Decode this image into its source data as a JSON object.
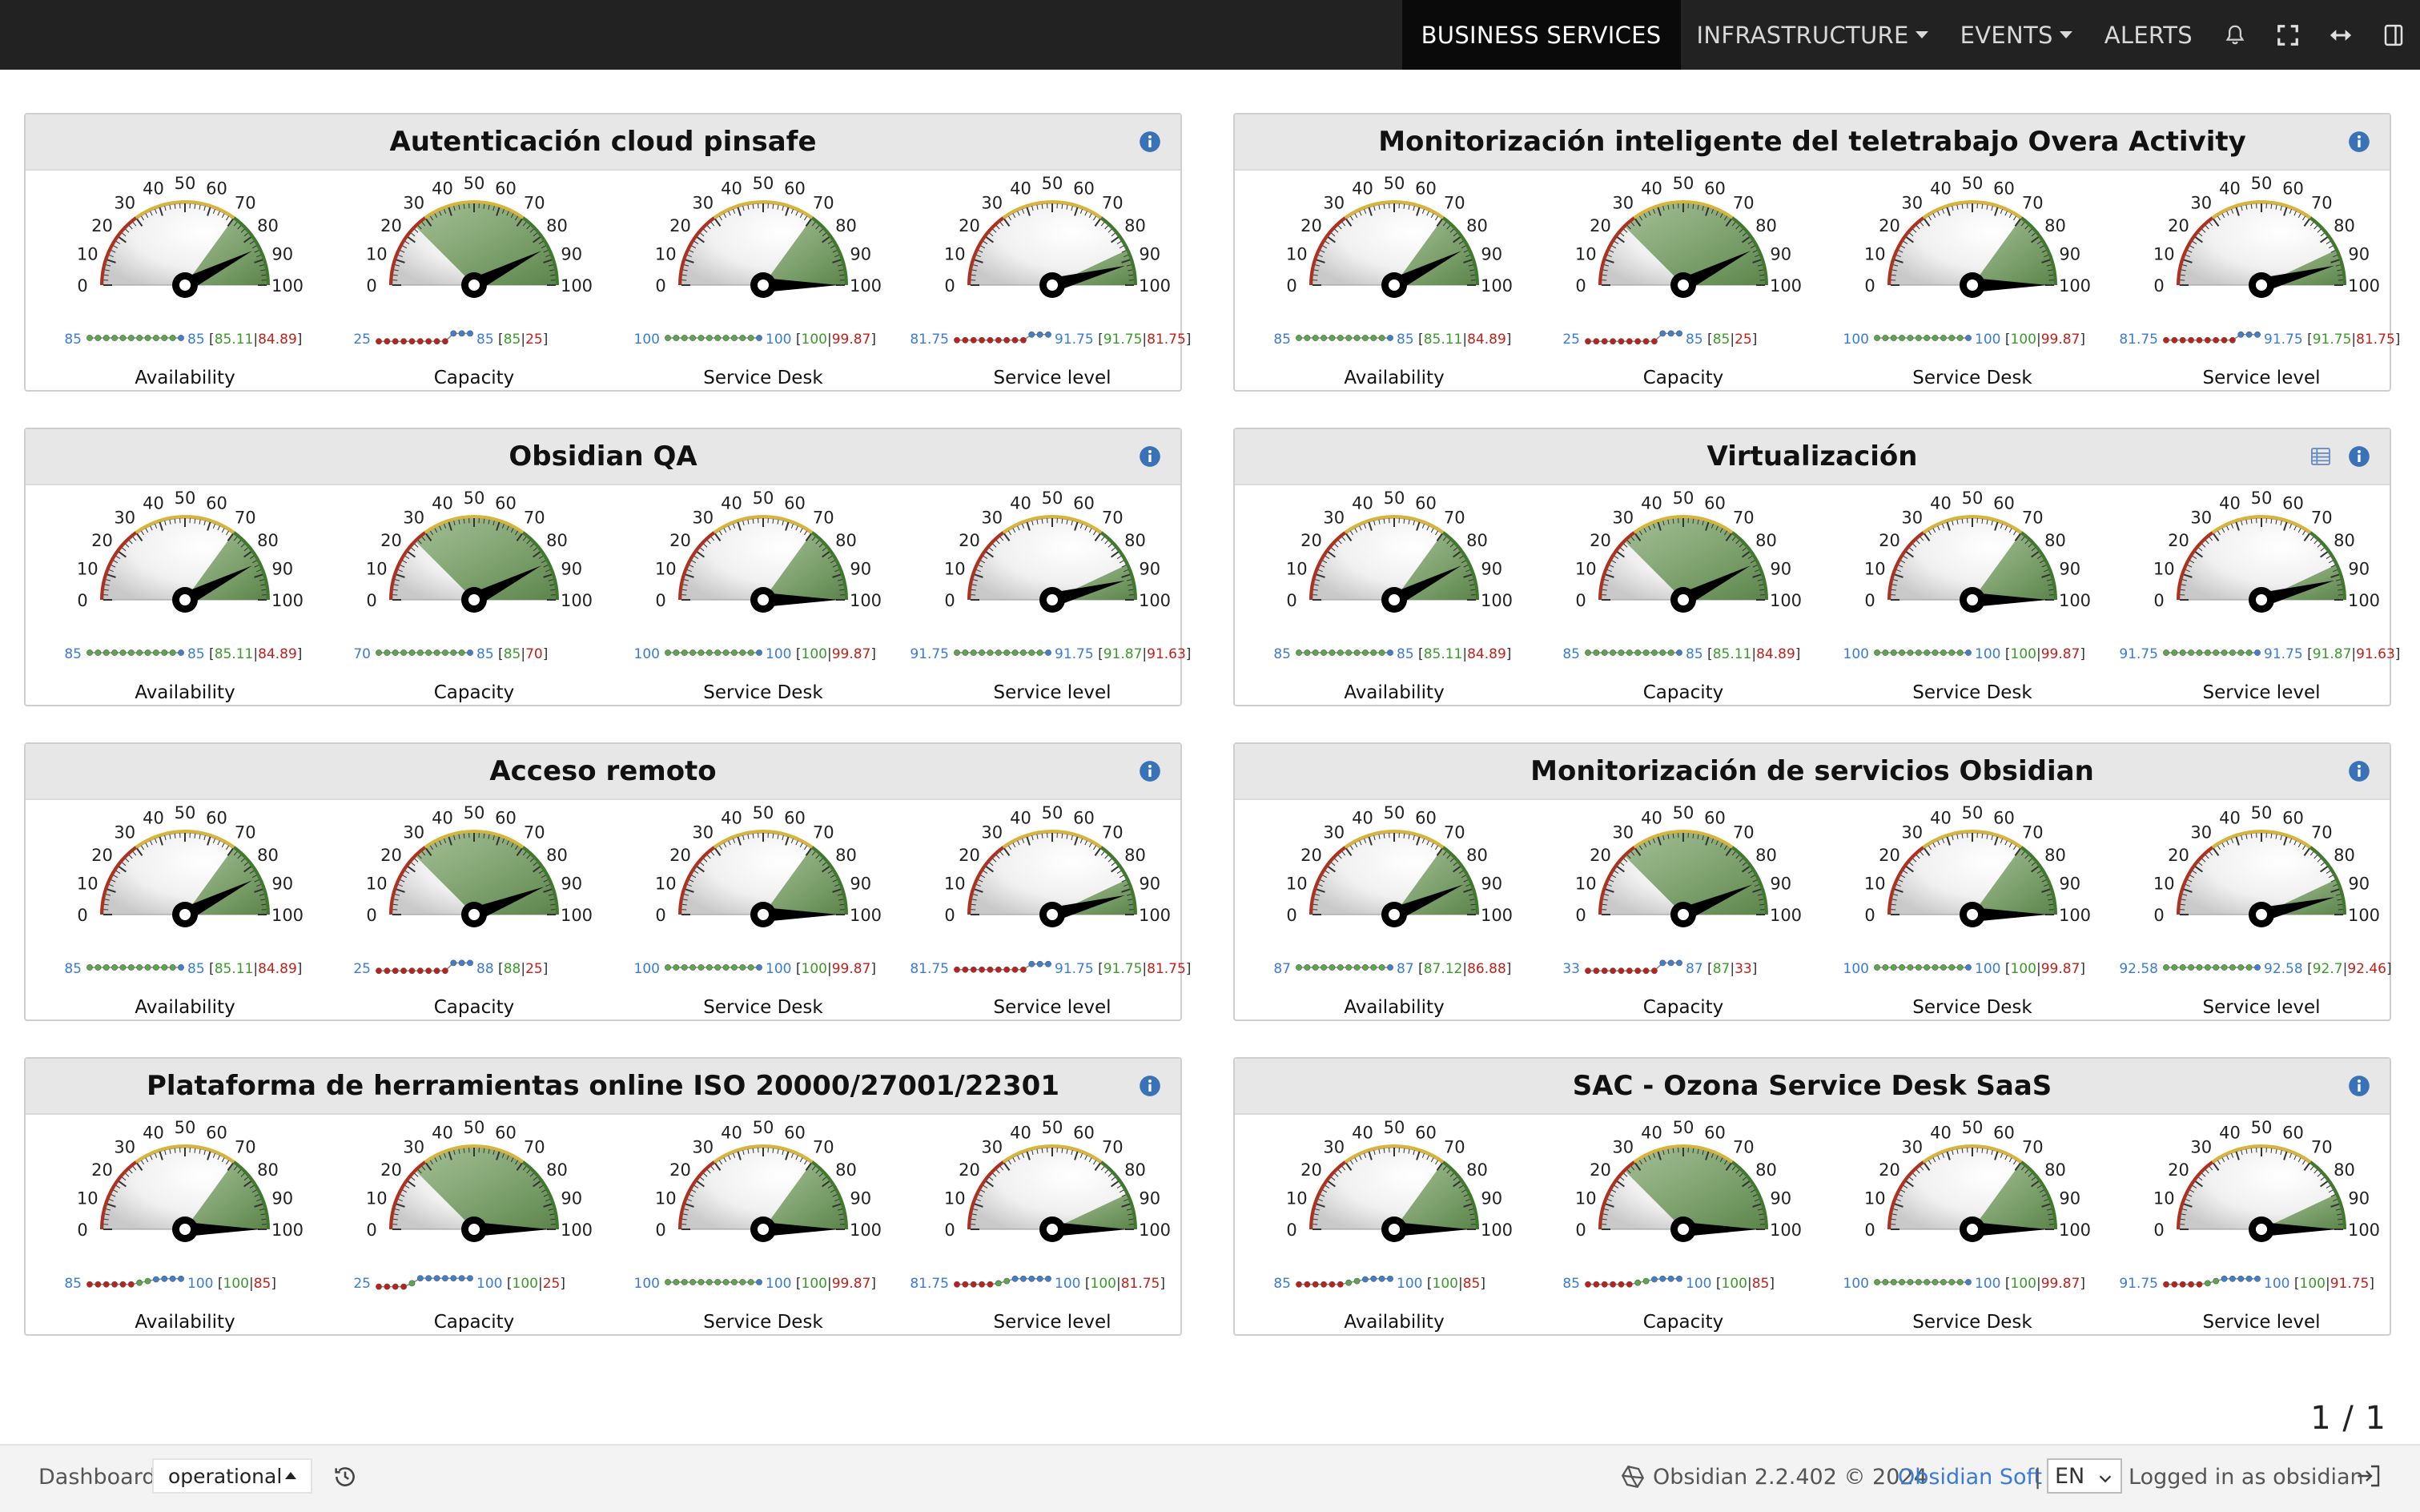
{
  "nav": {
    "items": [
      {
        "label": "BUSINESS SERVICES",
        "active": true,
        "dropdown": false
      },
      {
        "label": "INFRASTRUCTURE",
        "active": false,
        "dropdown": true
      },
      {
        "label": "EVENTS",
        "active": false,
        "dropdown": true
      },
      {
        "label": "ALERTS",
        "active": false,
        "dropdown": false
      }
    ],
    "icons": [
      "bell-icon",
      "fullscreen-icon",
      "resize-horizontal-icon",
      "sidebar-toggle-icon"
    ]
  },
  "colors": {
    "topbar": "#222222",
    "link": "#3a7bd5",
    "green": "#3a9a2a",
    "red": "#c0201a",
    "gauge_fill": "#4f7d3c",
    "info": "#3a72b8"
  },
  "gauge_scale": {
    "min": 0,
    "max": 100,
    "ticks": [
      "0",
      "10",
      "20",
      "30",
      "40",
      "50",
      "60",
      "70",
      "80",
      "90",
      "100"
    ]
  },
  "panels": [
    {
      "title": "Autenticación cloud pinsafe",
      "has_list_icon": false,
      "gauges": [
        {
          "label": "Availability",
          "value": 85,
          "min_val": "85",
          "cur_val": "85",
          "hi": "85.11",
          "lo": "84.89",
          "spark": [
            0.5,
            0.5,
            0.5,
            0.5,
            0.5,
            0.5,
            0.5,
            0.5,
            0.5,
            0.5,
            0.5,
            0.5
          ],
          "fill_from": 70
        },
        {
          "label": "Capacity",
          "value": 85,
          "min_val": "25",
          "cur_val": "85",
          "hi": "85",
          "lo": "25",
          "spark": [
            0.2,
            0.2,
            0.2,
            0.2,
            0.2,
            0.2,
            0.2,
            0.2,
            0.2,
            0.9,
            0.9,
            0.9
          ],
          "fill_from": 25
        },
        {
          "label": "Service Desk",
          "value": 100,
          "min_val": "100",
          "cur_val": "100",
          "hi": "100",
          "lo": "99.87",
          "spark": [
            0.5,
            0.5,
            0.5,
            0.5,
            0.5,
            0.5,
            0.5,
            0.5,
            0.5,
            0.5,
            0.5,
            0.5
          ],
          "fill_from": 70
        },
        {
          "label": "Service level",
          "value": 91.75,
          "min_val": "81.75",
          "cur_val": "91.75",
          "hi": "91.75",
          "lo": "81.75",
          "spark": [
            0.3,
            0.3,
            0.3,
            0.3,
            0.3,
            0.3,
            0.3,
            0.3,
            0.3,
            0.8,
            0.8,
            0.8
          ],
          "fill_from": 86
        }
      ]
    },
    {
      "title": "Monitorización inteligente del teletrabajo Overa Activity",
      "has_list_icon": false,
      "gauges": [
        {
          "label": "Availability",
          "value": 85,
          "min_val": "85",
          "cur_val": "85",
          "hi": "85.11",
          "lo": "84.89",
          "spark": [
            0.5,
            0.5,
            0.5,
            0.5,
            0.5,
            0.5,
            0.5,
            0.5,
            0.5,
            0.5,
            0.5,
            0.5
          ],
          "fill_from": 70
        },
        {
          "label": "Capacity",
          "value": 85,
          "min_val": "25",
          "cur_val": "85",
          "hi": "85",
          "lo": "25",
          "spark": [
            0.2,
            0.2,
            0.2,
            0.2,
            0.2,
            0.2,
            0.2,
            0.2,
            0.2,
            0.9,
            0.9,
            0.9
          ],
          "fill_from": 25
        },
        {
          "label": "Service Desk",
          "value": 100,
          "min_val": "100",
          "cur_val": "100",
          "hi": "100",
          "lo": "99.87",
          "spark": [
            0.5,
            0.5,
            0.5,
            0.5,
            0.5,
            0.5,
            0.5,
            0.5,
            0.5,
            0.5,
            0.5,
            0.5
          ],
          "fill_from": 70
        },
        {
          "label": "Service level",
          "value": 91.75,
          "min_val": "81.75",
          "cur_val": "91.75",
          "hi": "91.75",
          "lo": "81.75",
          "spark": [
            0.3,
            0.3,
            0.3,
            0.3,
            0.3,
            0.3,
            0.3,
            0.3,
            0.3,
            0.8,
            0.8,
            0.8
          ],
          "fill_from": 86
        }
      ]
    },
    {
      "title": "Obsidian QA",
      "has_list_icon": false,
      "gauges": [
        {
          "label": "Availability",
          "value": 85,
          "min_val": "85",
          "cur_val": "85",
          "hi": "85.11",
          "lo": "84.89",
          "spark": [
            0.5,
            0.5,
            0.5,
            0.5,
            0.5,
            0.5,
            0.5,
            0.5,
            0.5,
            0.5,
            0.5,
            0.5
          ],
          "fill_from": 70
        },
        {
          "label": "Capacity",
          "value": 85,
          "min_val": "70",
          "cur_val": "85",
          "hi": "85",
          "lo": "70",
          "spark": [
            0.5,
            0.5,
            0.5,
            0.5,
            0.5,
            0.5,
            0.5,
            0.5,
            0.5,
            0.5,
            0.5,
            0.5
          ],
          "fill_from": 25
        },
        {
          "label": "Service Desk",
          "value": 100,
          "min_val": "100",
          "cur_val": "100",
          "hi": "100",
          "lo": "99.87",
          "spark": [
            0.5,
            0.5,
            0.5,
            0.5,
            0.5,
            0.5,
            0.5,
            0.5,
            0.5,
            0.5,
            0.5,
            0.5
          ],
          "fill_from": 70
        },
        {
          "label": "Service level",
          "value": 91.75,
          "min_val": "91.75",
          "cur_val": "91.75",
          "hi": "91.87",
          "lo": "91.63",
          "spark": [
            0.5,
            0.5,
            0.5,
            0.5,
            0.5,
            0.5,
            0.5,
            0.5,
            0.5,
            0.5,
            0.5,
            0.5
          ],
          "fill_from": 86
        }
      ]
    },
    {
      "title": "Virtualización",
      "has_list_icon": true,
      "gauges": [
        {
          "label": "Availability",
          "value": 85,
          "min_val": "85",
          "cur_val": "85",
          "hi": "85.11",
          "lo": "84.89",
          "spark": [
            0.5,
            0.5,
            0.5,
            0.5,
            0.5,
            0.5,
            0.5,
            0.5,
            0.5,
            0.5,
            0.5,
            0.5
          ],
          "fill_from": 70
        },
        {
          "label": "Capacity",
          "value": 85,
          "min_val": "85",
          "cur_val": "85",
          "hi": "85.11",
          "lo": "84.89",
          "spark": [
            0.5,
            0.5,
            0.5,
            0.5,
            0.5,
            0.5,
            0.5,
            0.5,
            0.5,
            0.5,
            0.5,
            0.5
          ],
          "fill_from": 25
        },
        {
          "label": "Service Desk",
          "value": 100,
          "min_val": "100",
          "cur_val": "100",
          "hi": "100",
          "lo": "99.87",
          "spark": [
            0.5,
            0.5,
            0.5,
            0.5,
            0.5,
            0.5,
            0.5,
            0.5,
            0.5,
            0.5,
            0.5,
            0.5
          ],
          "fill_from": 70
        },
        {
          "label": "Service level",
          "value": 91.75,
          "min_val": "91.75",
          "cur_val": "91.75",
          "hi": "91.87",
          "lo": "91.63",
          "spark": [
            0.5,
            0.5,
            0.5,
            0.5,
            0.5,
            0.5,
            0.5,
            0.5,
            0.5,
            0.5,
            0.5,
            0.5
          ],
          "fill_from": 86
        }
      ]
    },
    {
      "title": "Acceso remoto",
      "has_list_icon": false,
      "gauges": [
        {
          "label": "Availability",
          "value": 85,
          "min_val": "85",
          "cur_val": "85",
          "hi": "85.11",
          "lo": "84.89",
          "spark": [
            0.5,
            0.5,
            0.5,
            0.5,
            0.5,
            0.5,
            0.5,
            0.5,
            0.5,
            0.5,
            0.5,
            0.5
          ],
          "fill_from": 70
        },
        {
          "label": "Capacity",
          "value": 88,
          "min_val": "25",
          "cur_val": "88",
          "hi": "88",
          "lo": "25",
          "spark": [
            0.2,
            0.2,
            0.2,
            0.2,
            0.2,
            0.2,
            0.2,
            0.2,
            0.2,
            0.9,
            0.9,
            0.9
          ],
          "fill_from": 25
        },
        {
          "label": "Service Desk",
          "value": 100,
          "min_val": "100",
          "cur_val": "100",
          "hi": "100",
          "lo": "99.87",
          "spark": [
            0.5,
            0.5,
            0.5,
            0.5,
            0.5,
            0.5,
            0.5,
            0.5,
            0.5,
            0.5,
            0.5,
            0.5
          ],
          "fill_from": 70
        },
        {
          "label": "Service level",
          "value": 91.75,
          "min_val": "81.75",
          "cur_val": "91.75",
          "hi": "91.75",
          "lo": "81.75",
          "spark": [
            0.3,
            0.3,
            0.3,
            0.3,
            0.3,
            0.3,
            0.3,
            0.3,
            0.3,
            0.8,
            0.8,
            0.8
          ],
          "fill_from": 86
        }
      ]
    },
    {
      "title": "Monitorización de servicios Obsidian",
      "has_list_icon": false,
      "gauges": [
        {
          "label": "Availability",
          "value": 87,
          "min_val": "87",
          "cur_val": "87",
          "hi": "87.12",
          "lo": "86.88",
          "spark": [
            0.5,
            0.5,
            0.5,
            0.5,
            0.5,
            0.5,
            0.5,
            0.5,
            0.5,
            0.5,
            0.5,
            0.5
          ],
          "fill_from": 70
        },
        {
          "label": "Capacity",
          "value": 87,
          "min_val": "33",
          "cur_val": "87",
          "hi": "87",
          "lo": "33",
          "spark": [
            0.2,
            0.2,
            0.2,
            0.2,
            0.2,
            0.2,
            0.2,
            0.2,
            0.2,
            0.9,
            0.9,
            0.9
          ],
          "fill_from": 25
        },
        {
          "label": "Service Desk",
          "value": 100,
          "min_val": "100",
          "cur_val": "100",
          "hi": "100",
          "lo": "99.87",
          "spark": [
            0.5,
            0.5,
            0.5,
            0.5,
            0.5,
            0.5,
            0.5,
            0.5,
            0.5,
            0.5,
            0.5,
            0.5
          ],
          "fill_from": 70
        },
        {
          "label": "Service level",
          "value": 92.58,
          "min_val": "92.58",
          "cur_val": "92.58",
          "hi": "92.7",
          "lo": "92.46",
          "spark": [
            0.5,
            0.5,
            0.5,
            0.5,
            0.5,
            0.5,
            0.5,
            0.5,
            0.5,
            0.5,
            0.5,
            0.5
          ],
          "fill_from": 86
        }
      ]
    },
    {
      "title": "Plataforma de herramientas online ISO 20000/27001/22301",
      "has_list_icon": false,
      "gauges": [
        {
          "label": "Availability",
          "value": 100,
          "min_val": "85",
          "cur_val": "100",
          "hi": "100",
          "lo": "85",
          "spark": [
            0.3,
            0.3,
            0.3,
            0.3,
            0.3,
            0.3,
            0.45,
            0.6,
            0.75,
            0.8,
            0.8,
            0.8
          ],
          "fill_from": 70
        },
        {
          "label": "Capacity",
          "value": 100,
          "min_val": "25",
          "cur_val": "100",
          "hi": "100",
          "lo": "25",
          "spark": [
            0.1,
            0.1,
            0.1,
            0.1,
            0.4,
            0.85,
            0.85,
            0.85,
            0.85,
            0.85,
            0.85,
            0.85
          ],
          "fill_from": 25
        },
        {
          "label": "Service Desk",
          "value": 100,
          "min_val": "100",
          "cur_val": "100",
          "hi": "100",
          "lo": "99.87",
          "spark": [
            0.5,
            0.5,
            0.5,
            0.5,
            0.5,
            0.5,
            0.5,
            0.5,
            0.5,
            0.5,
            0.5,
            0.5
          ],
          "fill_from": 70
        },
        {
          "label": "Service level",
          "value": 100,
          "min_val": "81.75",
          "cur_val": "100",
          "hi": "100",
          "lo": "81.75",
          "spark": [
            0.3,
            0.3,
            0.3,
            0.3,
            0.3,
            0.4,
            0.6,
            0.8,
            0.8,
            0.8,
            0.8,
            0.8
          ],
          "fill_from": 86
        }
      ]
    },
    {
      "title": "SAC - Ozona Service Desk SaaS",
      "has_list_icon": false,
      "gauges": [
        {
          "label": "Availability",
          "value": 100,
          "min_val": "85",
          "cur_val": "100",
          "hi": "100",
          "lo": "85",
          "spark": [
            0.3,
            0.3,
            0.3,
            0.3,
            0.3,
            0.3,
            0.45,
            0.6,
            0.75,
            0.8,
            0.8,
            0.8
          ],
          "fill_from": 70
        },
        {
          "label": "Capacity",
          "value": 100,
          "min_val": "85",
          "cur_val": "100",
          "hi": "100",
          "lo": "85",
          "spark": [
            0.3,
            0.3,
            0.3,
            0.3,
            0.3,
            0.3,
            0.45,
            0.6,
            0.75,
            0.8,
            0.8,
            0.8
          ],
          "fill_from": 25
        },
        {
          "label": "Service Desk",
          "value": 100,
          "min_val": "100",
          "cur_val": "100",
          "hi": "100",
          "lo": "99.87",
          "spark": [
            0.5,
            0.5,
            0.5,
            0.5,
            0.5,
            0.5,
            0.5,
            0.5,
            0.5,
            0.5,
            0.5,
            0.5
          ],
          "fill_from": 70
        },
        {
          "label": "Service level",
          "value": 100,
          "min_val": "91.75",
          "cur_val": "100",
          "hi": "100",
          "lo": "91.75",
          "spark": [
            0.3,
            0.3,
            0.3,
            0.3,
            0.3,
            0.4,
            0.6,
            0.8,
            0.8,
            0.8,
            0.8,
            0.8
          ],
          "fill_from": 86
        }
      ]
    }
  ],
  "pager": "1 / 1",
  "footer": {
    "dashboard_label": "Dashboard",
    "dashboard_select": "operational",
    "version_text": "Obsidian 2.2.402 © 2024",
    "company_link": "Obsidian Soft",
    "separator": "|",
    "language": "EN",
    "logged_in": "Logged in as obsidian"
  }
}
